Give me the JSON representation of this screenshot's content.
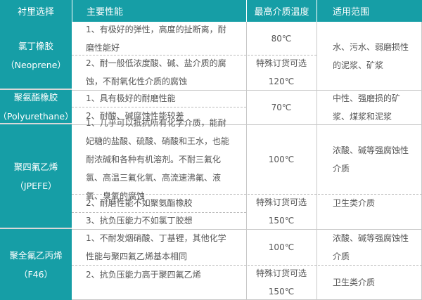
{
  "header": {
    "col1": "衬里选择",
    "col2": "主要性能",
    "col3": "最高介质温度",
    "col4": "适用范围"
  },
  "accent_color": "#169ea6",
  "rows": [
    {
      "name": "氯丁橡胶",
      "code": "（Neoprene）",
      "props": [
        "1、有极好的弹性，高度的扯断离，耐磨性能好",
        "2、耐一般低浓度酸、碱、盐介质的腐蚀，不耐氧化性介质的腐蚀"
      ],
      "temp": [
        "80℃",
        "特殊订货可选",
        "120℃"
      ],
      "use": [
        "水、污水、弱磨损性的泥浆、矿浆"
      ]
    },
    {
      "name": "聚氨酯橡胶",
      "code": "（Polyurethane）",
      "props": [
        "1、具有极好的耐磨性能",
        "2、耐酸、碱腐蚀性能较差"
      ],
      "temp": [
        "70℃"
      ],
      "use": [
        "中性、强磨损的矿浆、煤浆和泥浆"
      ]
    },
    {
      "name": "聚四氟乙烯",
      "code": "（JPEFE）",
      "props": [
        "1、几乎可以抵抗所有化学介质，能耐妃糖的盐酸、硫酸、硝酸和王水，也能耐浓碱和各种有机溶剂。不耐三氟化氯、高温三氟化氧、高流速沸氟、液氧、臭氧的腐蚀",
        "2、耐磨性能不如聚氨酯橡胶",
        "3、抗负压能力不如氯丁胶想"
      ],
      "temp": [
        "100℃",
        "特殊订货可选",
        "150℃"
      ],
      "use": [
        "浓酸、碱等强腐蚀性介质",
        "卫生类介质"
      ]
    },
    {
      "name": "聚全氟乙丙烯",
      "code": "（F46）",
      "props": [
        "1、不耐发烟硝酸、丁基锂，其他化学性能与聚四氟乙烯基本相同",
        "2、抗负压能力高于聚四氟乙烯"
      ],
      "temp": [
        "100℃",
        "特殊订货可选",
        "150℃"
      ],
      "use": [
        "浓酸、碱等强腐蚀性介质",
        "卫生类介质"
      ]
    }
  ]
}
